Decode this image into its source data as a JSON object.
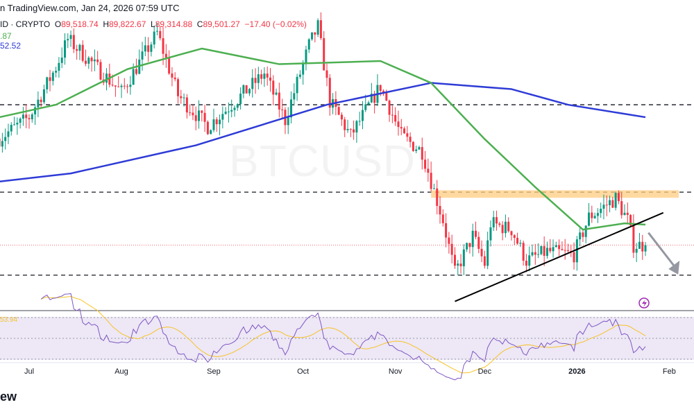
{
  "header": {
    "source": "n TradingView.com, Jan 24, 2026 07:59 UTC"
  },
  "legend": {
    "symbol": "ID · CRYPTO",
    "open_label": "O",
    "open": "89,518.74",
    "high_label": "H",
    "high": "89,822.67",
    "low_label": "L",
    "low": "89,314.88",
    "close_label": "C",
    "close": "89,501.27",
    "change": "−17.40 (−0.02%)",
    "ma_fast_value": ".87",
    "ma_slow_value": "52.52"
  },
  "watermark": "BTCUSD",
  "rsi_value": "53.94",
  "logo_text": "ew",
  "colors": {
    "up": "#089981",
    "down": "#f23645",
    "ma_fast": "#4caf50",
    "ma_slow": "#2e3bd6",
    "rsi": "#7e57c2",
    "rsi_ma": "#f7c325",
    "zone": "#ffcc80",
    "rsi_bg": "#ede7f6"
  },
  "chart_data": {
    "type": "candlestick",
    "ylim": [
      78800,
      128500
    ],
    "x_ticks": [
      {
        "label": "Jul",
        "date": "2025-07-01"
      },
      {
        "label": "Aug",
        "date": "2025-08-01"
      },
      {
        "label": "Sep",
        "date": "2025-09-01"
      },
      {
        "label": "Oct",
        "date": "2025-10-01"
      },
      {
        "label": "Nov",
        "date": "2025-11-01"
      },
      {
        "label": "Dec",
        "date": "2025-12-01"
      },
      {
        "label": "2026",
        "date": "2026-01-01",
        "bold": true
      },
      {
        "label": "Feb",
        "date": "2026-02-01"
      }
    ],
    "close_path": [
      [
        "2025-06-21",
        106600
      ],
      [
        "2025-07-01",
        110000
      ],
      [
        "2025-07-10",
        118000
      ],
      [
        "2025-07-14",
        122500
      ],
      [
        "2025-08-01",
        114000
      ],
      [
        "2025-08-13",
        123500
      ],
      [
        "2025-08-20",
        113500
      ],
      [
        "2025-08-30",
        108500
      ],
      [
        "2025-09-08",
        112500
      ],
      [
        "2025-09-18",
        117000
      ],
      [
        "2025-09-25",
        109500
      ],
      [
        "2025-10-03",
        121500
      ],
      [
        "2025-10-06",
        124500
      ],
      [
        "2025-10-10",
        112500
      ],
      [
        "2025-10-17",
        107000
      ],
      [
        "2025-10-27",
        115000
      ],
      [
        "2025-11-03",
        107000
      ],
      [
        "2025-11-10",
        104500
      ],
      [
        "2025-11-17",
        93500
      ],
      [
        "2025-11-21",
        85000
      ],
      [
        "2025-11-27",
        91000
      ],
      [
        "2025-12-01",
        86500
      ],
      [
        "2025-12-03",
        93000
      ],
      [
        "2025-12-10",
        92000
      ],
      [
        "2025-12-15",
        87000
      ],
      [
        "2025-12-22",
        88500
      ],
      [
        "2025-12-31",
        88000
      ],
      [
        "2026-01-05",
        94000
      ],
      [
        "2026-01-14",
        97000
      ],
      [
        "2026-01-18",
        93500
      ],
      [
        "2026-01-20",
        89500
      ],
      [
        "2026-01-24",
        89501
      ]
    ],
    "ma_slow": [
      [
        "2025-06-21",
        99700
      ],
      [
        "2025-07-15",
        101000
      ],
      [
        "2025-08-26",
        105500
      ],
      [
        "2025-10-09",
        112000
      ],
      [
        "2025-11-13",
        115500
      ],
      [
        "2025-12-10",
        114500
      ],
      [
        "2025-12-29",
        112000
      ],
      [
        "2026-01-24",
        110000
      ]
    ],
    "ma_fast": [
      [
        "2025-06-21",
        110000
      ],
      [
        "2025-07-10",
        112000
      ],
      [
        "2025-08-03",
        117700
      ],
      [
        "2025-08-28",
        121000
      ],
      [
        "2025-09-23",
        118500
      ],
      [
        "2025-10-27",
        119000
      ],
      [
        "2025-11-13",
        115500
      ],
      [
        "2025-12-01",
        106500
      ],
      [
        "2025-12-18",
        98800
      ],
      [
        "2026-01-03",
        92000
      ],
      [
        "2026-01-17",
        93000
      ],
      [
        "2026-01-24",
        92800
      ]
    ],
    "horizontal_levels": [
      112000,
      98000,
      84700
    ],
    "last_price": 89501.27,
    "resistance_zone": {
      "from": "2025-11-13",
      "low": 97100,
      "high": 98300
    },
    "trendline": [
      [
        "2025-11-21",
        80500
      ],
      [
        "2026-01-30",
        94700
      ]
    ],
    "arrow": [
      [
        "2026-01-25",
        91500
      ],
      [
        "2026-02-04",
        84800
      ]
    ],
    "rsi": {
      "levels": [
        70,
        50,
        30
      ],
      "period": 14
    }
  }
}
